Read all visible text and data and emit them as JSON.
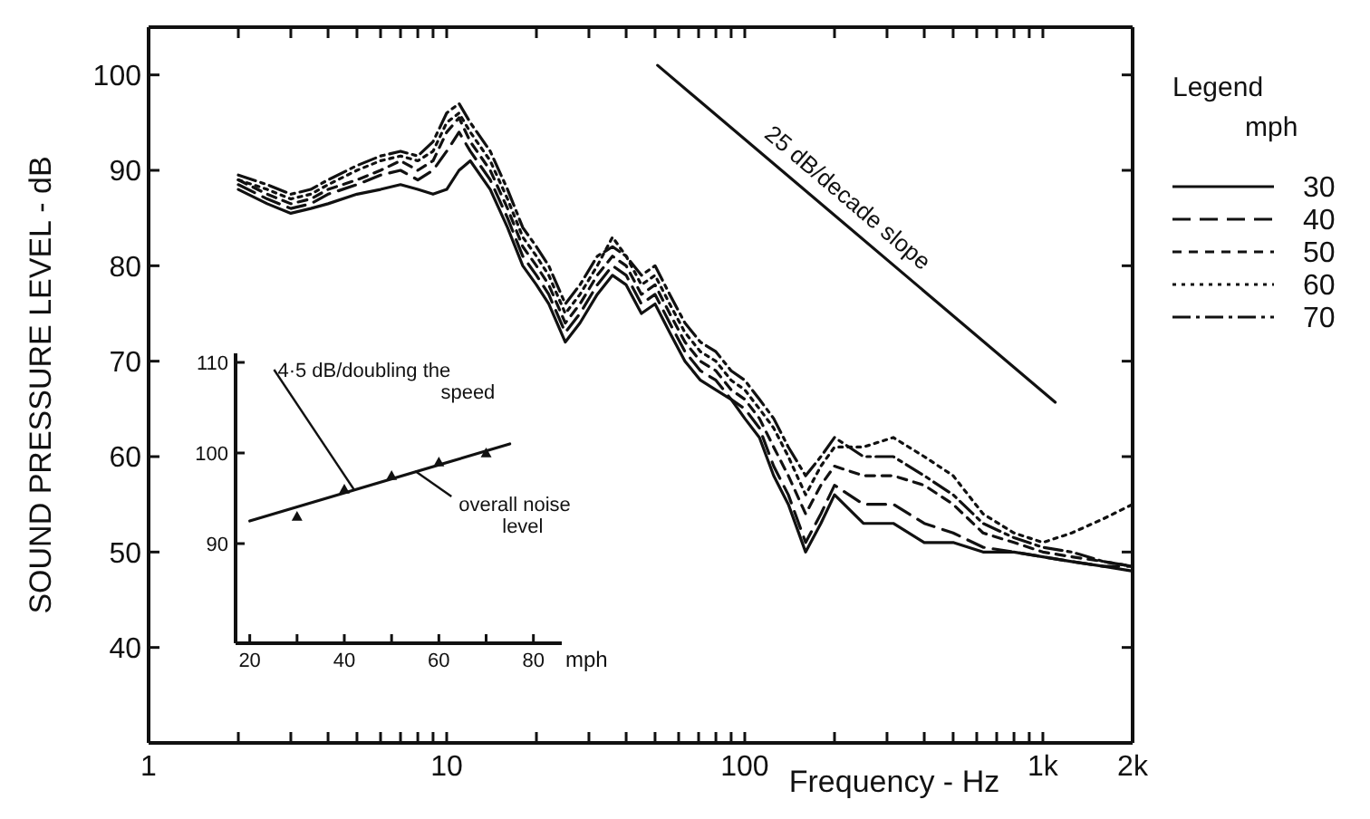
{
  "chart_data": [
    {
      "type": "line",
      "xlabel": "Frequency - Hz",
      "ylabel": "SOUND PRESSURE LEVEL - dB",
      "legend_title": "Legend\nmph",
      "legend": "right",
      "log": "x",
      "grid": false,
      "xlim": [
        1,
        2000
      ],
      "ylim": [
        30,
        105
      ],
      "xticks": [
        1,
        {
          "value": 2,
          "label": null
        },
        {
          "value": 3,
          "label": null
        },
        {
          "value": 4,
          "label": null
        },
        {
          "value": 5,
          "label": null
        },
        {
          "value": 6,
          "label": null
        },
        {
          "value": 7,
          "label": null
        },
        {
          "value": 8,
          "label": null
        },
        {
          "value": 9,
          "label": null
        },
        10,
        {
          "value": 20,
          "label": null
        },
        {
          "value": 30,
          "label": null
        },
        {
          "value": 40,
          "label": null
        },
        {
          "value": 50,
          "label": null
        },
        {
          "value": 60,
          "label": null
        },
        {
          "value": 70,
          "label": null
        },
        {
          "value": 80,
          "label": null
        },
        {
          "value": 90,
          "label": null
        },
        100,
        {
          "value": 200,
          "label": null
        },
        {
          "value": 300,
          "label": null
        },
        {
          "value": 400,
          "label": null
        },
        {
          "value": 500,
          "label": null
        },
        {
          "value": 600,
          "label": null
        },
        {
          "value": 700,
          "label": null
        },
        {
          "value": 800,
          "label": null
        },
        {
          "value": 900,
          "label": null
        },
        {
          "value": 1000,
          "label": "1k"
        },
        {
          "value": 2000,
          "label": "2k"
        }
      ],
      "yticks": [
        40,
        50,
        60,
        70,
        80,
        90,
        100
      ],
      "x": [
        2,
        2.5,
        3,
        3.5,
        4,
        5,
        6,
        7,
        8,
        9,
        10,
        11,
        12,
        14,
        16,
        18,
        20,
        22,
        25,
        28,
        32,
        36,
        40,
        45,
        50,
        56,
        63,
        71,
        80,
        90,
        100,
        112,
        125,
        140,
        160,
        180,
        200,
        250,
        315,
        400,
        500,
        630,
        800,
        1000,
        1250,
        1600,
        2000
      ],
      "annotations": [
        {
          "text": "25 dB/decade slope",
          "x": 200,
          "y": 85.5
        }
      ],
      "series": [
        {
          "name": "30",
          "color": "#111111",
          "line_style": "solid",
          "values": [
            88,
            86.5,
            85.5,
            86,
            86.5,
            87.5,
            88,
            88.5,
            88,
            87.5,
            88,
            90,
            91,
            88,
            84,
            80,
            78,
            76,
            72,
            74,
            77,
            79,
            78,
            75,
            76,
            73,
            70,
            68,
            67,
            66,
            64,
            62,
            58,
            55,
            50,
            53,
            56,
            53,
            53,
            51,
            51,
            50,
            50,
            49.5,
            49,
            48.5,
            48
          ]
        },
        {
          "name": "40",
          "color": "#111111",
          "line_style": "longdash",
          "values": [
            88.5,
            87,
            86,
            86.5,
            87.5,
            88.5,
            89.5,
            90,
            89,
            90,
            92,
            94,
            92,
            89,
            85,
            81,
            79,
            77,
            73,
            75,
            78,
            80,
            79,
            76,
            77,
            74,
            71,
            69,
            68,
            66,
            65,
            63,
            59,
            56,
            51,
            54,
            57,
            55,
            55,
            53,
            52,
            50.5,
            50,
            49.5,
            49,
            48.5,
            48.5
          ]
        },
        {
          "name": "50",
          "color": "#111111",
          "line_style": "dashed",
          "values": [
            89,
            87.5,
            86.5,
            87,
            88,
            89,
            90,
            91,
            90,
            91,
            94,
            95.5,
            93,
            90,
            86,
            82,
            80,
            78,
            74,
            76,
            79,
            81,
            80,
            77,
            78,
            75,
            72,
            70,
            69,
            67,
            66,
            64,
            61,
            58,
            54,
            57,
            59,
            58,
            58,
            57,
            55,
            52,
            51,
            50,
            49.5,
            49,
            48.5
          ]
        },
        {
          "name": "60",
          "color": "#111111",
          "line_style": "dotted",
          "values": [
            89,
            88,
            87,
            87.5,
            88.5,
            90,
            91,
            91.5,
            91,
            92,
            95,
            96,
            94,
            91,
            87,
            83,
            81,
            79,
            75,
            77,
            80,
            83,
            81,
            78,
            79,
            76,
            73,
            71,
            70,
            68,
            67,
            65,
            63,
            60,
            56,
            59,
            61,
            61,
            62,
            60,
            58,
            54,
            52,
            51,
            52,
            53.5,
            55
          ]
        },
        {
          "name": "70",
          "color": "#111111",
          "line_style": "dashdot",
          "values": [
            89.5,
            88.5,
            87.5,
            88,
            89,
            90.5,
            91.5,
            92,
            91.5,
            93,
            96,
            97,
            95,
            92,
            88,
            84,
            82,
            80,
            76,
            78,
            81,
            82,
            81,
            79,
            80,
            77,
            74,
            72,
            71,
            69,
            68,
            66,
            64,
            61,
            58,
            60,
            62,
            60,
            60,
            58,
            56,
            53,
            51.5,
            50.5,
            50,
            49,
            48.5
          ]
        },
        {
          "color": "#111111",
          "line_style": "solid",
          "x": [
            51,
            1100
          ],
          "values": [
            101,
            65.7
          ]
        }
      ]
    },
    {
      "type": "scatter",
      "xlabel": "mph",
      "grid": false,
      "marker": "triangle",
      "xlim": [
        17,
        86
      ],
      "ylim": [
        79,
        111
      ],
      "xticks": [
        20,
        {
          "value": 30,
          "label": null
        },
        40,
        {
          "value": 50,
          "label": null
        },
        60,
        {
          "value": 70,
          "label": null
        },
        80
      ],
      "yticks": [
        90,
        100,
        110
      ],
      "x": [
        30,
        40,
        50,
        60,
        70
      ],
      "annotations": [
        {
          "text": "4·5 dB/doubling the speed",
          "x": 42,
          "y": 96
        },
        {
          "text": "overall noise level",
          "x": 55,
          "y": 98
        }
      ],
      "series": [
        {
          "color": "#111111",
          "values": [
            93,
            96,
            97.5,
            99,
            100
          ]
        },
        {
          "type": "line",
          "marker": "none",
          "color": "#111111",
          "line_style": "solid",
          "x": [
            20,
            75
          ],
          "values": [
            92.5,
            101
          ]
        }
      ]
    }
  ]
}
